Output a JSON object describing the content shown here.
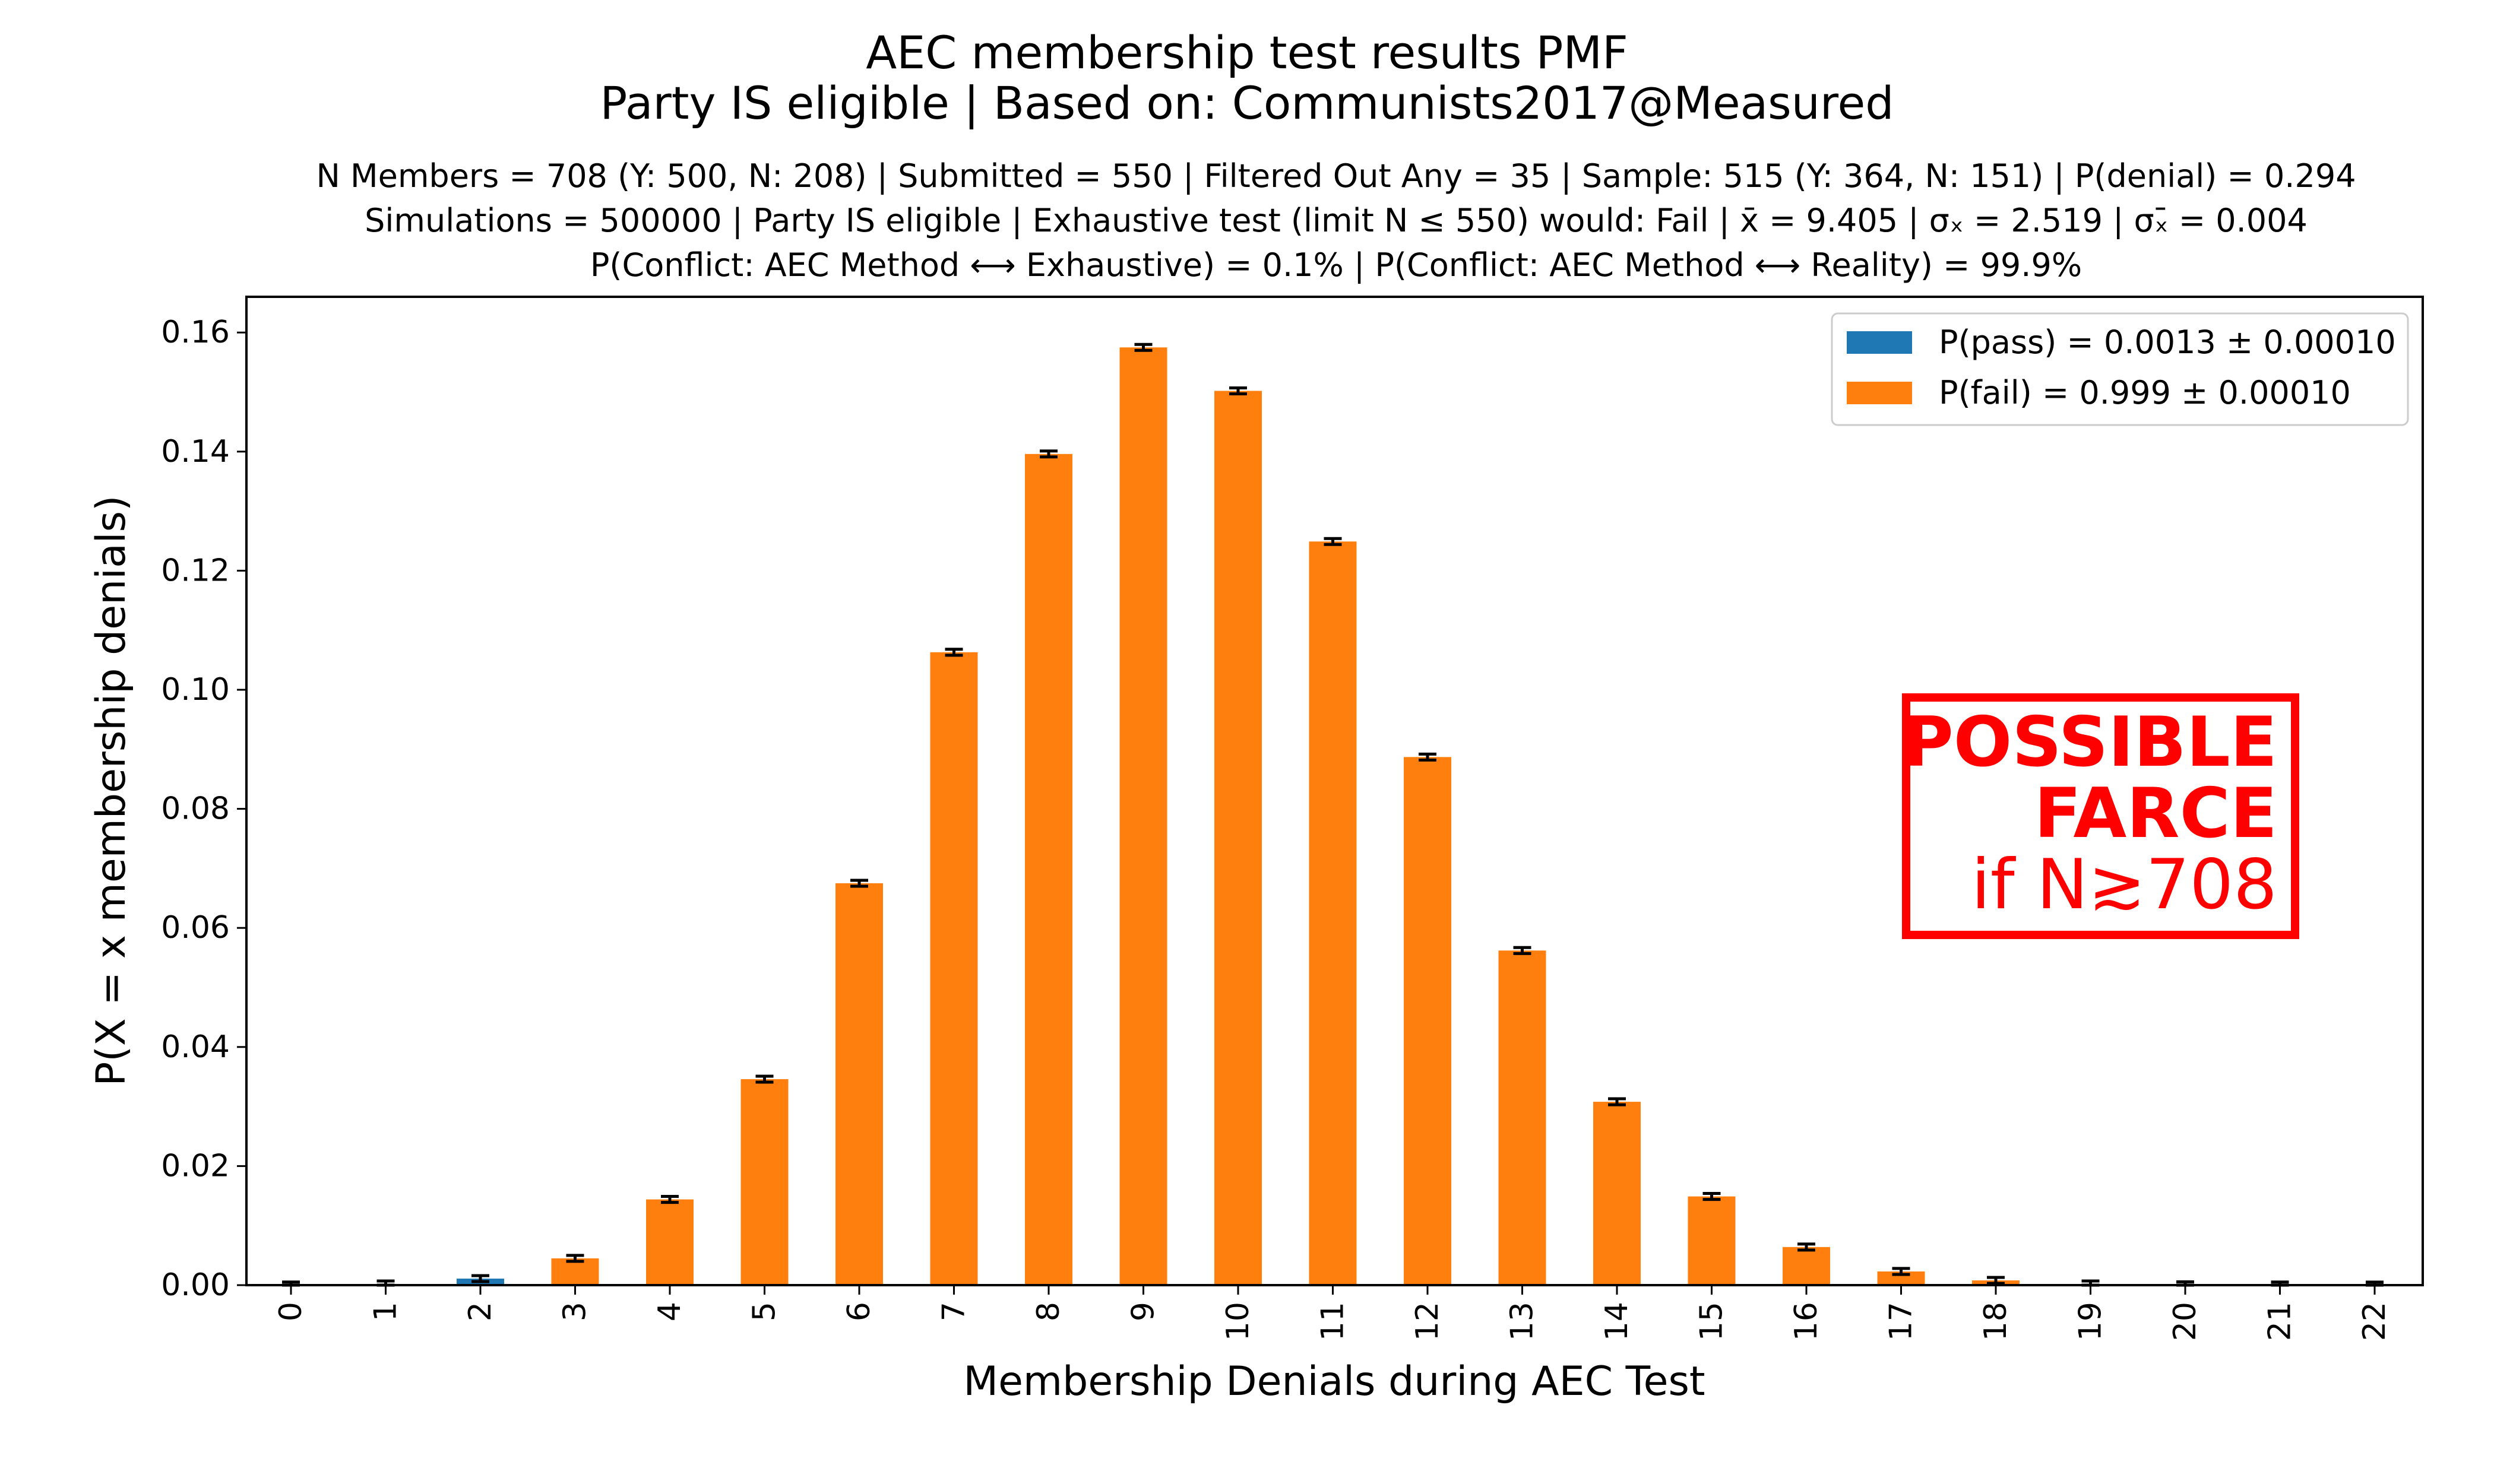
{
  "chart_data": {
    "type": "bar",
    "title": "AEC membership test results PMF",
    "title_line2": "Party IS eligible | Based on: Communists2017@Measured",
    "subtitle_lines": [
      "N Members = 708 (Y: 500, N: 208) | Submitted = 550 | Filtered Out Any = 35 | Sample: 515 (Y: 364, N: 151) | P(denial) = 0.294",
      "Simulations = 500000 | Party IS eligible | Exhaustive test (limit N ≤ 550) would: Fail | x̄ = 9.405 | σₓ = 2.519 | σₓ̄ = 0.004",
      "P(Conflict: AEC Method ⟷ Exhaustive) = 0.1% | P(Conflict: AEC Method ⟷ Reality) = 99.9%"
    ],
    "xlabel": "Membership Denials during AEC Test",
    "ylabel": "P(X = x membership denials)",
    "ylim": [
      0,
      0.166
    ],
    "yticks": [
      0.0,
      0.02,
      0.04,
      0.06,
      0.08,
      0.1,
      0.12,
      0.14,
      0.16
    ],
    "ytick_labels": [
      "0.00",
      "0.02",
      "0.04",
      "0.06",
      "0.08",
      "0.10",
      "0.12",
      "0.14",
      "0.16"
    ],
    "categories": [
      "0",
      "1",
      "2",
      "3",
      "4",
      "5",
      "6",
      "7",
      "8",
      "9",
      "10",
      "11",
      "12",
      "13",
      "14",
      "15",
      "16",
      "17",
      "18",
      "19",
      "20",
      "21",
      "22"
    ],
    "values": [
      2e-05,
      0.0002,
      0.0011,
      0.0045,
      0.0144,
      0.0346,
      0.0675,
      0.1063,
      0.1396,
      0.1575,
      0.1502,
      0.1249,
      0.0887,
      0.0562,
      0.0308,
      0.0149,
      0.0064,
      0.0023,
      0.0008,
      0.0002,
      6e-05,
      2e-05,
      1e-05
    ],
    "bar_series": [
      "fail",
      "fail",
      "pass",
      "fail",
      "fail",
      "fail",
      "fail",
      "fail",
      "fail",
      "fail",
      "fail",
      "fail",
      "fail",
      "fail",
      "fail",
      "fail",
      "fail",
      "fail",
      "fail",
      "fail",
      "fail",
      "fail",
      "fail"
    ],
    "error_half_width": 0.0005,
    "series": [
      {
        "key": "pass",
        "name": "P(pass) = 0.0013 ± 0.00010",
        "color": "#1f77b4"
      },
      {
        "key": "fail",
        "name": "P(fail) = 0.999 ± 0.00010",
        "color": "#ff7f0e"
      }
    ],
    "legend_position": "top-right",
    "grid": false,
    "annotation": {
      "lines": [
        "POSSIBLE",
        "FARCE",
        "if N≳708"
      ],
      "color": "#ff0000"
    }
  }
}
